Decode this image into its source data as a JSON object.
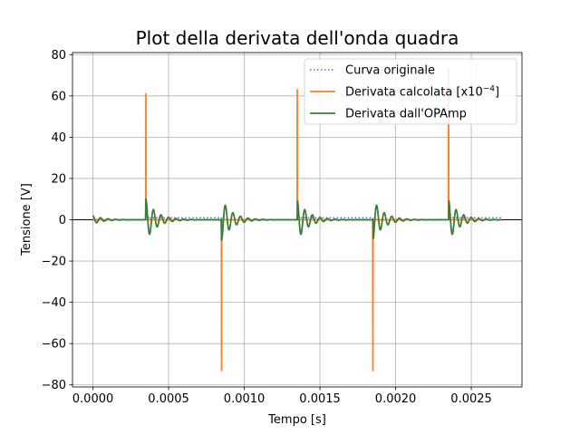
{
  "chart_data": {
    "type": "line",
    "title": "Plot della derivata dell'onda quadra",
    "xlabel": "Tempo [s]",
    "ylabel": "Tensione [V]",
    "xlim": [
      -0.000135,
      0.002835
    ],
    "ylim": [
      -81,
      81
    ],
    "xticks": [
      0.0,
      0.0005,
      0.001,
      0.0015,
      0.002,
      0.0025
    ],
    "xtick_labels": [
      "0.0000",
      "0.0005",
      "0.0010",
      "0.0015",
      "0.0020",
      "0.0025"
    ],
    "yticks": [
      -80,
      -60,
      -40,
      -20,
      0,
      20,
      40,
      60,
      80
    ],
    "ytick_labels": [
      "−80",
      "−60",
      "−40",
      "−20",
      "0",
      "20",
      "40",
      "60",
      "80"
    ],
    "grid": true,
    "legend_position": "top-right",
    "zero_line": true,
    "series": [
      {
        "name": "Curva originale",
        "legend_text": "Curva originale",
        "color": "#4472c4",
        "style": "dotted",
        "x": [
          0.0,
          0.00035,
          0.00035,
          0.00085,
          0.00085,
          0.00135,
          0.00135,
          0.00185,
          0.00185,
          0.00235,
          0.00235,
          0.0027
        ],
        "y": [
          0,
          0,
          1,
          1,
          0,
          0,
          1,
          1,
          0,
          0,
          1,
          1
        ]
      },
      {
        "name": "Derivata calcolata [x10^-4]",
        "legend_text": "Derivata calcolata [x10",
        "legend_sup": "−4",
        "legend_tail": "]",
        "color": "#ff7f2a",
        "style": "solid",
        "x": [
          0.0,
          0.000349,
          0.00035,
          0.000351,
          0.000849,
          0.00085,
          0.000851,
          0.001349,
          0.00135,
          0.001351,
          0.001849,
          0.00185,
          0.001851,
          0.002349,
          0.00235,
          0.002351,
          0.0027
        ],
        "y": [
          0,
          0,
          61,
          0,
          0,
          -73,
          0,
          0,
          63,
          0,
          0,
          -73,
          0,
          0,
          73,
          0,
          0
        ]
      },
      {
        "name": "Derivata dall'OPAmp",
        "legend_text": "Derivata dall'OPAmp",
        "color": "#3a7d3a",
        "style": "solid",
        "ringing": {
          "start": 0.0,
          "end": 0.0027,
          "events": [
            {
              "t": 0.0,
              "amp": 2
            },
            {
              "t": 0.00035,
              "amp": 10
            },
            {
              "t": 0.00085,
              "amp": -10
            },
            {
              "t": 0.00135,
              "amp": 10
            },
            {
              "t": 0.00185,
              "amp": -10
            },
            {
              "t": 0.00235,
              "amp": 10
            }
          ],
          "period": 5e-05,
          "decay": 7e-05,
          "sample_step": 2.5e-06
        }
      }
    ]
  }
}
